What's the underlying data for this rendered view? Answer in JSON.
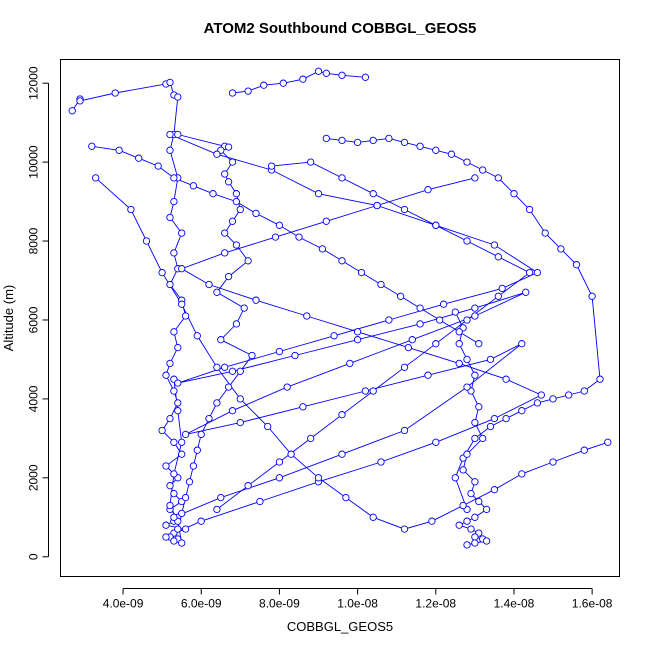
{
  "chart_data": {
    "type": "line",
    "title": "ATOM2 Southbound COBBGL_GEOS5",
    "xlabel": "COBBGL_GEOS5",
    "ylabel": "Altitude (m)",
    "xlim": [
      2.4e-09,
      1.67e-08
    ],
    "ylim": [
      -500,
      12600
    ],
    "xticks": [
      4e-09,
      6e-09,
      8e-09,
      1e-08,
      1.2e-08,
      1.4e-08,
      1.6e-08
    ],
    "xtick_labels": [
      "4.0e-09",
      "6.0e-09",
      "8.0e-09",
      "1.0e-08",
      "1.2e-08",
      "1.4e-08",
      "1.6e-08"
    ],
    "yticks": [
      0,
      2000,
      4000,
      6000,
      8000,
      10000,
      12000
    ],
    "ytick_labels": [
      "0",
      "2000",
      "4000",
      "6000",
      "8000",
      "10000",
      "12000"
    ],
    "grid": false,
    "marker": "open-circle",
    "color": "#0000ff",
    "series": [
      {
        "x": [
          2.7e-09,
          2.9e-09,
          2.9e-09,
          3.8e-09,
          5.1e-09,
          5.2e-09,
          5.3e-09,
          5.4e-09,
          5.3e-09,
          5.2e-09,
          5.4e-09,
          5.3e-09,
          5.2e-09,
          5.5e-09,
          5.3e-09,
          5.4e-09,
          5.2e-09,
          5.5e-09,
          5.6e-09,
          5.3e-09,
          5.4e-09,
          5.2e-09,
          5.1e-09,
          5.3e-09,
          5.4e-09,
          5.2e-09,
          5e-09,
          5.3e-09,
          5.5e-09,
          5.1e-09,
          5.4e-09,
          5.2e-09,
          5.3e-09,
          5.5e-09,
          5.2e-09,
          5.4e-09,
          5.3e-09,
          5.1e-09,
          5.6e-09,
          5.3e-09,
          5.2e-09,
          5.4e-09,
          5.3e-09,
          5.5e-09,
          5.4e-09,
          5.2e-09,
          5.3e-09,
          5.5e-09,
          5.4e-09,
          5.3e-09
        ],
        "y": [
          11300,
          11600,
          11550,
          11750,
          11980,
          12020,
          11700,
          11650,
          10700,
          10300,
          9600,
          9000,
          8600,
          8200,
          7700,
          7300,
          6900,
          6500,
          6100,
          5700,
          5300,
          4900,
          4600,
          4200,
          3900,
          3500,
          3200,
          2900,
          2600,
          2300,
          2000,
          1800,
          1600,
          1400,
          1200,
          1000,
          900,
          800,
          700,
          600,
          500,
          450,
          400,
          350,
          900,
          1300,
          2100,
          2900,
          3700,
          4500
        ]
      },
      {
        "x": [
          5.4e-09,
          6.6e-09,
          6.7e-09,
          6.5e-09,
          6.8e-09,
          6.6e-09,
          6.7e-09,
          6.9e-09,
          7e-09,
          6.8e-09,
          6.6e-09,
          6.9e-09,
          7.2e-09,
          6.7e-09,
          6.4e-09,
          7.1e-09,
          6.9e-09,
          6.5e-09,
          7.3e-09,
          7e-09,
          6.7e-09,
          6.4e-09,
          6.2e-09,
          6e-09,
          5.9e-09,
          5.8e-09,
          5.7e-09,
          5.6e-09,
          5.5e-09,
          5.4e-09
        ],
        "y": [
          10700,
          10400,
          10380,
          10300,
          10000,
          9700,
          9500,
          9200,
          8800,
          8500,
          8200,
          7900,
          7500,
          7100,
          6700,
          6300,
          5900,
          5500,
          5100,
          4700,
          4300,
          3900,
          3500,
          3100,
          2700,
          2300,
          1900,
          1500,
          1100,
          700
        ]
      },
      {
        "x": [
          6.8e-09,
          7.2e-09,
          7.6e-09,
          8.1e-09,
          8.6e-09,
          9e-09,
          9.2e-09,
          9.6e-09,
          1.02e-08
        ],
        "y": [
          11750,
          11800,
          11950,
          12000,
          12100,
          12300,
          12250,
          12200,
          12150
        ]
      },
      {
        "x": [
          9.2e-09,
          9.6e-09,
          1e-08,
          1.04e-08,
          1.08e-08,
          1.12e-08,
          1.16e-08,
          1.2e-08,
          1.24e-08,
          1.28e-08,
          1.32e-08,
          1.36e-08,
          1.4e-08,
          1.44e-08,
          1.48e-08,
          1.52e-08,
          1.56e-08,
          1.6e-08,
          1.62e-08,
          1.58e-08,
          1.54e-08,
          1.5e-08,
          1.46e-08,
          1.42e-08,
          1.38e-08,
          1.34e-08,
          1.3e-08,
          1.27e-08,
          1.25e-08,
          1.28e-08
        ],
        "y": [
          10600,
          10550,
          10500,
          10550,
          10600,
          10500,
          10400,
          10300,
          10200,
          10000,
          9800,
          9600,
          9200,
          8800,
          8200,
          7800,
          7400,
          6600,
          4500,
          4200,
          4100,
          4000,
          3900,
          3700,
          3500,
          3300,
          3000,
          2500,
          2000,
          1200
        ]
      },
      {
        "x": [
          1.25e-08,
          1.27e-08,
          1.26e-08,
          1.28e-08,
          1.3e-08,
          1.29e-08,
          1.31e-08,
          1.3e-08,
          1.32e-08,
          1.28e-08,
          1.27e-08,
          1.3e-08,
          1.29e-08,
          1.31e-08,
          1.33e-08,
          1.3e-08,
          1.28e-08,
          1.26e-08,
          1.29e-08,
          1.31e-08,
          1.3e-08,
          1.32e-08,
          1.33e-08,
          1.3e-08,
          1.28e-08
        ],
        "y": [
          6200,
          5800,
          5400,
          5000,
          4600,
          4200,
          3800,
          3400,
          3000,
          2600,
          2200,
          1900,
          1600,
          1400,
          1200,
          1000,
          900,
          800,
          700,
          600,
          500,
          450,
          400,
          350,
          300
        ]
      },
      {
        "x": [
          5.2e-09,
          6.4e-09,
          7.8e-09,
          9e-09,
          1.05e-08,
          1.2e-08,
          1.35e-08,
          1.46e-08,
          1.37e-08,
          1.22e-08,
          1.08e-08,
          9.4e-09,
          8e-09,
          6.6e-09,
          5.4e-09,
          6.8e-09,
          8.4e-09,
          1e-08,
          1.16e-08,
          1.3e-08,
          1.43e-08,
          1.3e-08,
          1.14e-08,
          9.8e-09,
          8.2e-09,
          6.8e-09,
          5.6e-09,
          7e-09,
          8.6e-09,
          1.02e-08,
          1.18e-08,
          1.34e-08,
          1.42e-08,
          1.28e-08,
          1.12e-08,
          9.6e-09,
          8e-09,
          6.5e-09,
          5.3e-09
        ],
        "y": [
          10700,
          10200,
          9800,
          9200,
          8900,
          8400,
          7900,
          7200,
          6800,
          6400,
          6000,
          5600,
          5200,
          4800,
          4400,
          4700,
          5100,
          5500,
          5900,
          6300,
          6700,
          6100,
          5500,
          4900,
          4300,
          3700,
          3100,
          3400,
          3800,
          4200,
          4600,
          5000,
          5400,
          4300,
          3200,
          2600,
          2000,
          1500,
          1000
        ]
      },
      {
        "x": [
          3.2e-09,
          3.9e-09,
          4.4e-09,
          4.9e-09,
          5.3e-09,
          5.8e-09,
          6.3e-09,
          6.9e-09,
          7.4e-09,
          8e-09,
          8.5e-09,
          9.1e-09,
          9.6e-09,
          1.01e-08,
          1.06e-08,
          1.11e-08,
          1.16e-08,
          1.21e-08,
          1.26e-08,
          1.31e-08
        ],
        "y": [
          10400,
          10300,
          10100,
          9900,
          9600,
          9400,
          9200,
          9000,
          8700,
          8400,
          8100,
          7800,
          7500,
          7200,
          6900,
          6600,
          6300,
          6000,
          5700,
          5400
        ]
      },
      {
        "x": [
          1.3e-08,
          1.18e-08,
          1.05e-08,
          9.2e-09,
          7.9e-09,
          6.6e-09,
          5.5e-09,
          6.2e-09,
          7.4e-09,
          8.7e-09,
          1e-08,
          1.13e-08,
          1.26e-08,
          1.38e-08,
          1.47e-08,
          1.35e-08,
          1.2e-08,
          1.06e-08,
          9e-09,
          7.5e-09,
          6e-09,
          5.1e-09
        ],
        "y": [
          9600,
          9300,
          8900,
          8500,
          8100,
          7700,
          7300,
          6900,
          6500,
          6100,
          5700,
          5300,
          4900,
          4500,
          4100,
          3500,
          2900,
          2400,
          1900,
          1400,
          900,
          500
        ]
      },
      {
        "x": [
          3.3e-09,
          4.2e-09,
          4.6e-09,
          5e-09,
          5.5e-09,
          5.9e-09,
          6.4e-09,
          7e-09,
          7.7e-09,
          8.3e-09,
          9e-09,
          9.7e-09,
          1.04e-08,
          1.12e-08,
          1.19e-08,
          1.27e-08,
          1.35e-08,
          1.42e-08,
          1.5e-08,
          1.58e-08,
          1.64e-08
        ],
        "y": [
          9600,
          8800,
          8000,
          7200,
          6400,
          5600,
          4800,
          4000,
          3300,
          2600,
          2000,
          1500,
          1000,
          700,
          900,
          1300,
          1700,
          2100,
          2400,
          2700,
          2900
        ]
      },
      {
        "x": [
          7.8e-09,
          8.8e-09,
          9.6e-09,
          1.04e-08,
          1.12e-08,
          1.2e-08,
          1.28e-08,
          1.36e-08,
          1.44e-08,
          1.36e-08,
          1.28e-08,
          1.2e-08,
          1.12e-08,
          1.04e-08,
          9.6e-09,
          8.8e-09,
          8e-09,
          7.2e-09,
          6.4e-09
        ],
        "y": [
          9900,
          10000,
          9600,
          9200,
          8800,
          8400,
          8000,
          7600,
          7200,
          6600,
          6000,
          5400,
          4800,
          4200,
          3600,
          3000,
          2400,
          1800,
          1200
        ]
      }
    ]
  }
}
